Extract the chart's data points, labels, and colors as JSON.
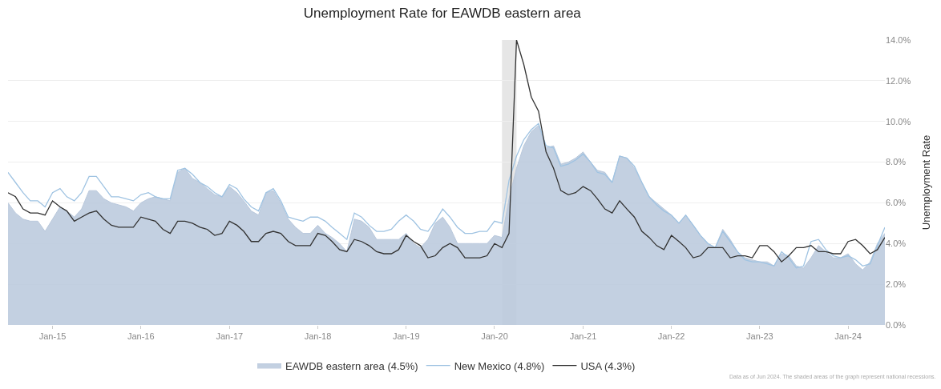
{
  "chart_data": {
    "type": "line",
    "title": "Unemployment Rate for EAWDB eastern area",
    "ylabel": "Unemployment Rate",
    "annotations": [
      "Data as of Jun 2024. The shaded areas of the graph represent national recessions."
    ],
    "x": [
      "2014-07",
      "2014-08",
      "2014-09",
      "2014-10",
      "2014-11",
      "2014-12",
      "2015-01",
      "2015-02",
      "2015-03",
      "2015-04",
      "2015-05",
      "2015-06",
      "2015-07",
      "2015-08",
      "2015-09",
      "2015-10",
      "2015-11",
      "2015-12",
      "2016-01",
      "2016-02",
      "2016-03",
      "2016-04",
      "2016-05",
      "2016-06",
      "2016-07",
      "2016-08",
      "2016-09",
      "2016-10",
      "2016-11",
      "2016-12",
      "2017-01",
      "2017-02",
      "2017-03",
      "2017-04",
      "2017-05",
      "2017-06",
      "2017-07",
      "2017-08",
      "2017-09",
      "2017-10",
      "2017-11",
      "2017-12",
      "2018-01",
      "2018-02",
      "2018-03",
      "2018-04",
      "2018-05",
      "2018-06",
      "2018-07",
      "2018-08",
      "2018-09",
      "2018-10",
      "2018-11",
      "2018-12",
      "2019-01",
      "2019-02",
      "2019-03",
      "2019-04",
      "2019-05",
      "2019-06",
      "2019-07",
      "2019-08",
      "2019-09",
      "2019-10",
      "2019-11",
      "2019-12",
      "2020-01",
      "2020-02",
      "2020-03",
      "2020-04",
      "2020-05",
      "2020-06",
      "2020-07",
      "2020-08",
      "2020-09",
      "2020-10",
      "2020-11",
      "2020-12",
      "2021-01",
      "2021-02",
      "2021-03",
      "2021-04",
      "2021-05",
      "2021-06",
      "2021-07",
      "2021-08",
      "2021-09",
      "2021-10",
      "2021-11",
      "2021-12",
      "2022-01",
      "2022-02",
      "2022-03",
      "2022-04",
      "2022-05",
      "2022-06",
      "2022-07",
      "2022-08",
      "2022-09",
      "2022-10",
      "2022-11",
      "2022-12",
      "2023-01",
      "2023-02",
      "2023-03",
      "2023-04",
      "2023-05",
      "2023-06",
      "2023-07",
      "2023-08",
      "2023-09",
      "2023-10",
      "2023-11",
      "2023-12",
      "2024-01",
      "2024-02",
      "2024-03",
      "2024-04",
      "2024-05",
      "2024-06"
    ],
    "series": [
      {
        "name": "EAWDB eastern area (4.5%)",
        "type": "area",
        "color": "#b9c8dc",
        "values": [
          6.0,
          5.5,
          5.2,
          5.1,
          5.1,
          4.6,
          5.2,
          5.8,
          5.6,
          5.3,
          5.7,
          6.6,
          6.6,
          6.2,
          6.0,
          5.9,
          5.8,
          5.6,
          6.0,
          6.2,
          6.3,
          6.2,
          6.1,
          7.5,
          7.7,
          7.2,
          7.0,
          6.7,
          6.4,
          6.3,
          6.8,
          6.5,
          6.1,
          5.6,
          5.4,
          6.5,
          6.6,
          6.0,
          5.2,
          4.8,
          4.5,
          4.5,
          4.9,
          4.5,
          4.3,
          4.0,
          3.6,
          5.2,
          5.1,
          4.8,
          4.2,
          4.2,
          4.2,
          4.2,
          4.5,
          4.0,
          3.8,
          4.2,
          5.0,
          5.3,
          4.8,
          4.0,
          4.0,
          4.0,
          4.0,
          4.0,
          4.4,
          4.3,
          6.2,
          7.7,
          8.8,
          9.5,
          9.8,
          8.7,
          8.8,
          7.9,
          8.0,
          8.2,
          8.5,
          8.0,
          7.6,
          7.5,
          7.0,
          8.3,
          8.2,
          7.7,
          7.0,
          6.3,
          6.0,
          5.7,
          5.4,
          5.0,
          5.4,
          4.9,
          4.4,
          4.0,
          3.8,
          4.7,
          4.2,
          3.6,
          3.3,
          3.2,
          3.1,
          3.1,
          2.9,
          3.5,
          3.4,
          2.9,
          2.8,
          3.3,
          3.9,
          3.6,
          3.3,
          3.3,
          3.5,
          3.0,
          2.7,
          3.1,
          4.0,
          4.5
        ]
      },
      {
        "name": "New Mexico (4.8%)",
        "color": "#9fc3e2",
        "values": [
          7.5,
          7.0,
          6.5,
          6.1,
          6.1,
          5.8,
          6.5,
          6.7,
          6.3,
          6.1,
          6.5,
          7.3,
          7.3,
          6.8,
          6.3,
          6.3,
          6.2,
          6.1,
          6.4,
          6.5,
          6.3,
          6.2,
          6.2,
          7.6,
          7.7,
          7.4,
          7.0,
          6.8,
          6.5,
          6.3,
          6.9,
          6.7,
          6.2,
          5.8,
          5.6,
          6.5,
          6.7,
          6.1,
          5.3,
          5.2,
          5.1,
          5.3,
          5.3,
          5.1,
          4.8,
          4.5,
          4.2,
          5.5,
          5.3,
          4.9,
          4.6,
          4.6,
          4.7,
          5.1,
          5.4,
          5.1,
          4.7,
          4.6,
          5.1,
          5.7,
          5.3,
          4.8,
          4.5,
          4.5,
          4.6,
          4.6,
          5.1,
          5.0,
          7.1,
          8.3,
          9.1,
          9.6,
          9.9,
          8.8,
          8.7,
          7.8,
          7.9,
          8.1,
          8.4,
          8.0,
          7.5,
          7.4,
          7.0,
          8.3,
          8.2,
          7.8,
          7.0,
          6.3,
          5.9,
          5.6,
          5.4,
          5.0,
          5.4,
          4.9,
          4.4,
          4.0,
          3.8,
          4.6,
          4.1,
          3.6,
          3.2,
          3.1,
          3.1,
          3.0,
          2.9,
          3.6,
          3.3,
          2.8,
          2.9,
          4.1,
          4.2,
          3.7,
          3.4,
          3.3,
          3.4,
          3.2,
          2.9,
          3.0,
          3.9,
          4.8
        ]
      },
      {
        "name": "USA (4.3%)",
        "color": "#333333",
        "values": [
          6.5,
          6.3,
          5.7,
          5.5,
          5.5,
          5.4,
          6.1,
          5.8,
          5.6,
          5.1,
          5.3,
          5.5,
          5.6,
          5.2,
          4.9,
          4.8,
          4.8,
          4.8,
          5.3,
          5.2,
          5.1,
          4.7,
          4.5,
          5.1,
          5.1,
          5.0,
          4.8,
          4.7,
          4.4,
          4.5,
          5.1,
          4.9,
          4.6,
          4.1,
          4.1,
          4.5,
          4.6,
          4.5,
          4.1,
          3.9,
          3.9,
          3.9,
          4.5,
          4.4,
          4.1,
          3.7,
          3.6,
          4.2,
          4.1,
          3.9,
          3.6,
          3.5,
          3.5,
          3.7,
          4.4,
          4.1,
          3.9,
          3.3,
          3.4,
          3.8,
          4.0,
          3.8,
          3.3,
          3.3,
          3.3,
          3.4,
          4.0,
          3.8,
          4.5,
          14.0,
          12.8,
          11.2,
          10.5,
          8.5,
          7.7,
          6.6,
          6.4,
          6.5,
          6.8,
          6.6,
          6.2,
          5.7,
          5.5,
          6.1,
          5.7,
          5.3,
          4.6,
          4.3,
          3.9,
          3.7,
          4.4,
          4.1,
          3.8,
          3.3,
          3.4,
          3.8,
          3.8,
          3.8,
          3.3,
          3.4,
          3.4,
          3.3,
          3.9,
          3.9,
          3.6,
          3.1,
          3.4,
          3.8,
          3.8,
          3.9,
          3.6,
          3.6,
          3.5,
          3.5,
          4.1,
          4.2,
          3.9,
          3.5,
          3.7,
          4.3
        ]
      }
    ],
    "xlim": [
      "2014-07",
      "2024-06"
    ],
    "xticks": [
      {
        "value": "2015-01",
        "label": "Jan-15"
      },
      {
        "value": "2016-01",
        "label": "Jan-16"
      },
      {
        "value": "2017-01",
        "label": "Jan-17"
      },
      {
        "value": "2018-01",
        "label": "Jan-18"
      },
      {
        "value": "2019-01",
        "label": "Jan-19"
      },
      {
        "value": "2020-01",
        "label": "Jan-20"
      },
      {
        "value": "2021-01",
        "label": "Jan-21"
      },
      {
        "value": "2022-01",
        "label": "Jan-22"
      },
      {
        "value": "2023-01",
        "label": "Jan-23"
      },
      {
        "value": "2024-01",
        "label": "Jan-24"
      }
    ],
    "ylim": [
      0,
      14
    ],
    "yticks": [
      {
        "value": 0,
        "label": "0.0%"
      },
      {
        "value": 2,
        "label": "2.0%"
      },
      {
        "value": 4,
        "label": "4.0%"
      },
      {
        "value": 6,
        "label": "6.0%"
      },
      {
        "value": 8,
        "label": "8.0%"
      },
      {
        "value": 10,
        "label": "10.0%"
      },
      {
        "value": 12,
        "label": "12.0%"
      },
      {
        "value": 14,
        "label": "14.0%"
      }
    ],
    "bands": [
      {
        "axis": "x",
        "from": "2020-02",
        "to": "2020-04",
        "color": "#e6e6e6"
      }
    ],
    "grid": "y",
    "legend": "bottom"
  }
}
